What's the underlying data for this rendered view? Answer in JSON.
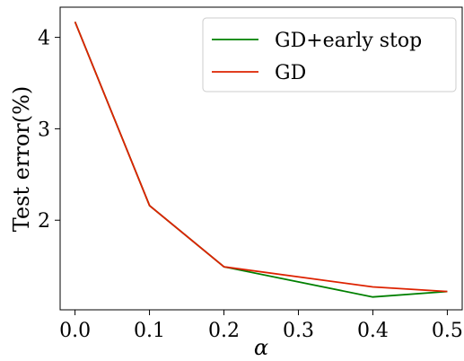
{
  "chart_data": {
    "type": "line",
    "xlabel": "α",
    "ylabel": "Test error(%)",
    "x": [
      0.0,
      0.1,
      0.2,
      0.4,
      0.5
    ],
    "xlim": [
      -0.02,
      0.52
    ],
    "ylim": [
      1.02,
      4.33
    ],
    "xticks": [
      "0.0",
      "0.1",
      "0.2",
      "0.3",
      "0.4",
      "0.5"
    ],
    "xtick_values": [
      0.0,
      0.1,
      0.2,
      0.3,
      0.4,
      0.5
    ],
    "yticks": [
      "2",
      "3",
      "4"
    ],
    "ytick_values": [
      2,
      3,
      4
    ],
    "grid": false,
    "legend_position": "top-right",
    "series": [
      {
        "name": "GD+early stop",
        "color": "#008000",
        "values": [
          4.17,
          2.16,
          1.49,
          1.16,
          1.22
        ]
      },
      {
        "name": "GD",
        "color": "#dd2200",
        "values": [
          4.17,
          2.16,
          1.49,
          1.27,
          1.22
        ]
      }
    ]
  }
}
